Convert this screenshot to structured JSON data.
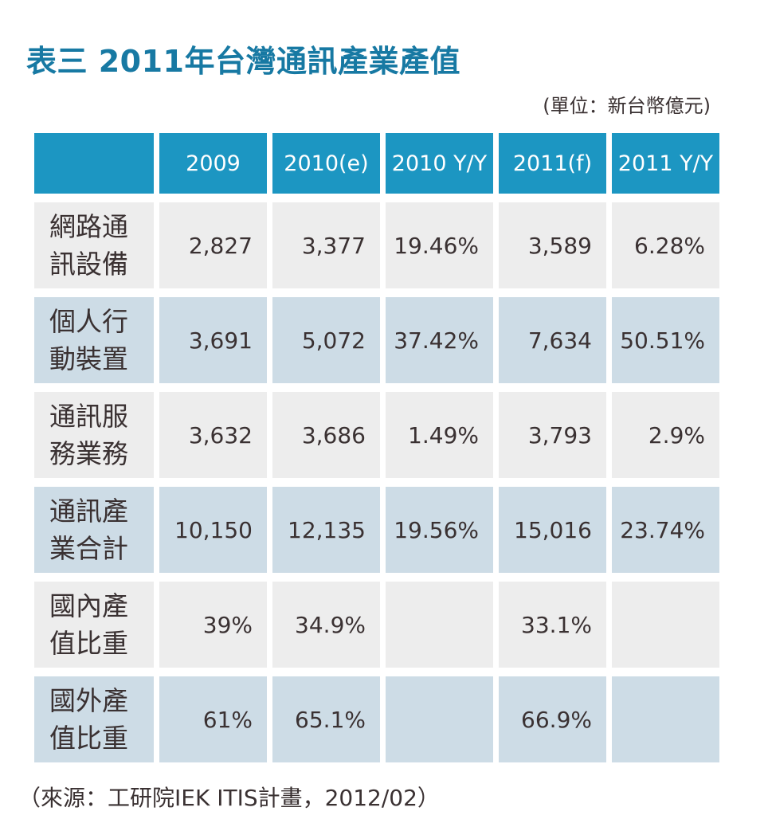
{
  "page": {
    "title": "表三 2011年台灣通訊產業產值",
    "unit_note": "(單位：新台幣億元)",
    "source": "（來源：工研院IEK ITIS計畫，2012/02）"
  },
  "colors": {
    "title_accent": "#1779a3",
    "header_bg": "#1c96c2",
    "header_text": "#ffffff",
    "row_gray": "#ededed",
    "row_blue": "#cddce6",
    "body_text": "#3a3132"
  },
  "table": {
    "columns": [
      "",
      "2009",
      "2010(e)",
      "2010 Y/Y",
      "2011(f)",
      "2011 Y/Y"
    ],
    "rows": [
      {
        "label": "網路通訊設備",
        "values": [
          "2,827",
          "3,377",
          "19.46%",
          "3,589",
          "6.28%"
        ]
      },
      {
        "label": "個人行動裝置",
        "values": [
          "3,691",
          "5,072",
          "37.42%",
          "7,634",
          "50.51%"
        ]
      },
      {
        "label": "通訊服務業務",
        "values": [
          "3,632",
          "3,686",
          "1.49%",
          "3,793",
          "2.9%"
        ]
      },
      {
        "label": "通訊產業合計",
        "values": [
          "10,150",
          "12,135",
          "19.56%",
          "15,016",
          "23.74%"
        ]
      },
      {
        "label": "國內產值比重",
        "values": [
          "39%",
          "34.9%",
          "",
          "33.1%",
          ""
        ]
      },
      {
        "label": "國外產值比重",
        "values": [
          "61%",
          "65.1%",
          "",
          "66.9%",
          ""
        ]
      }
    ]
  }
}
